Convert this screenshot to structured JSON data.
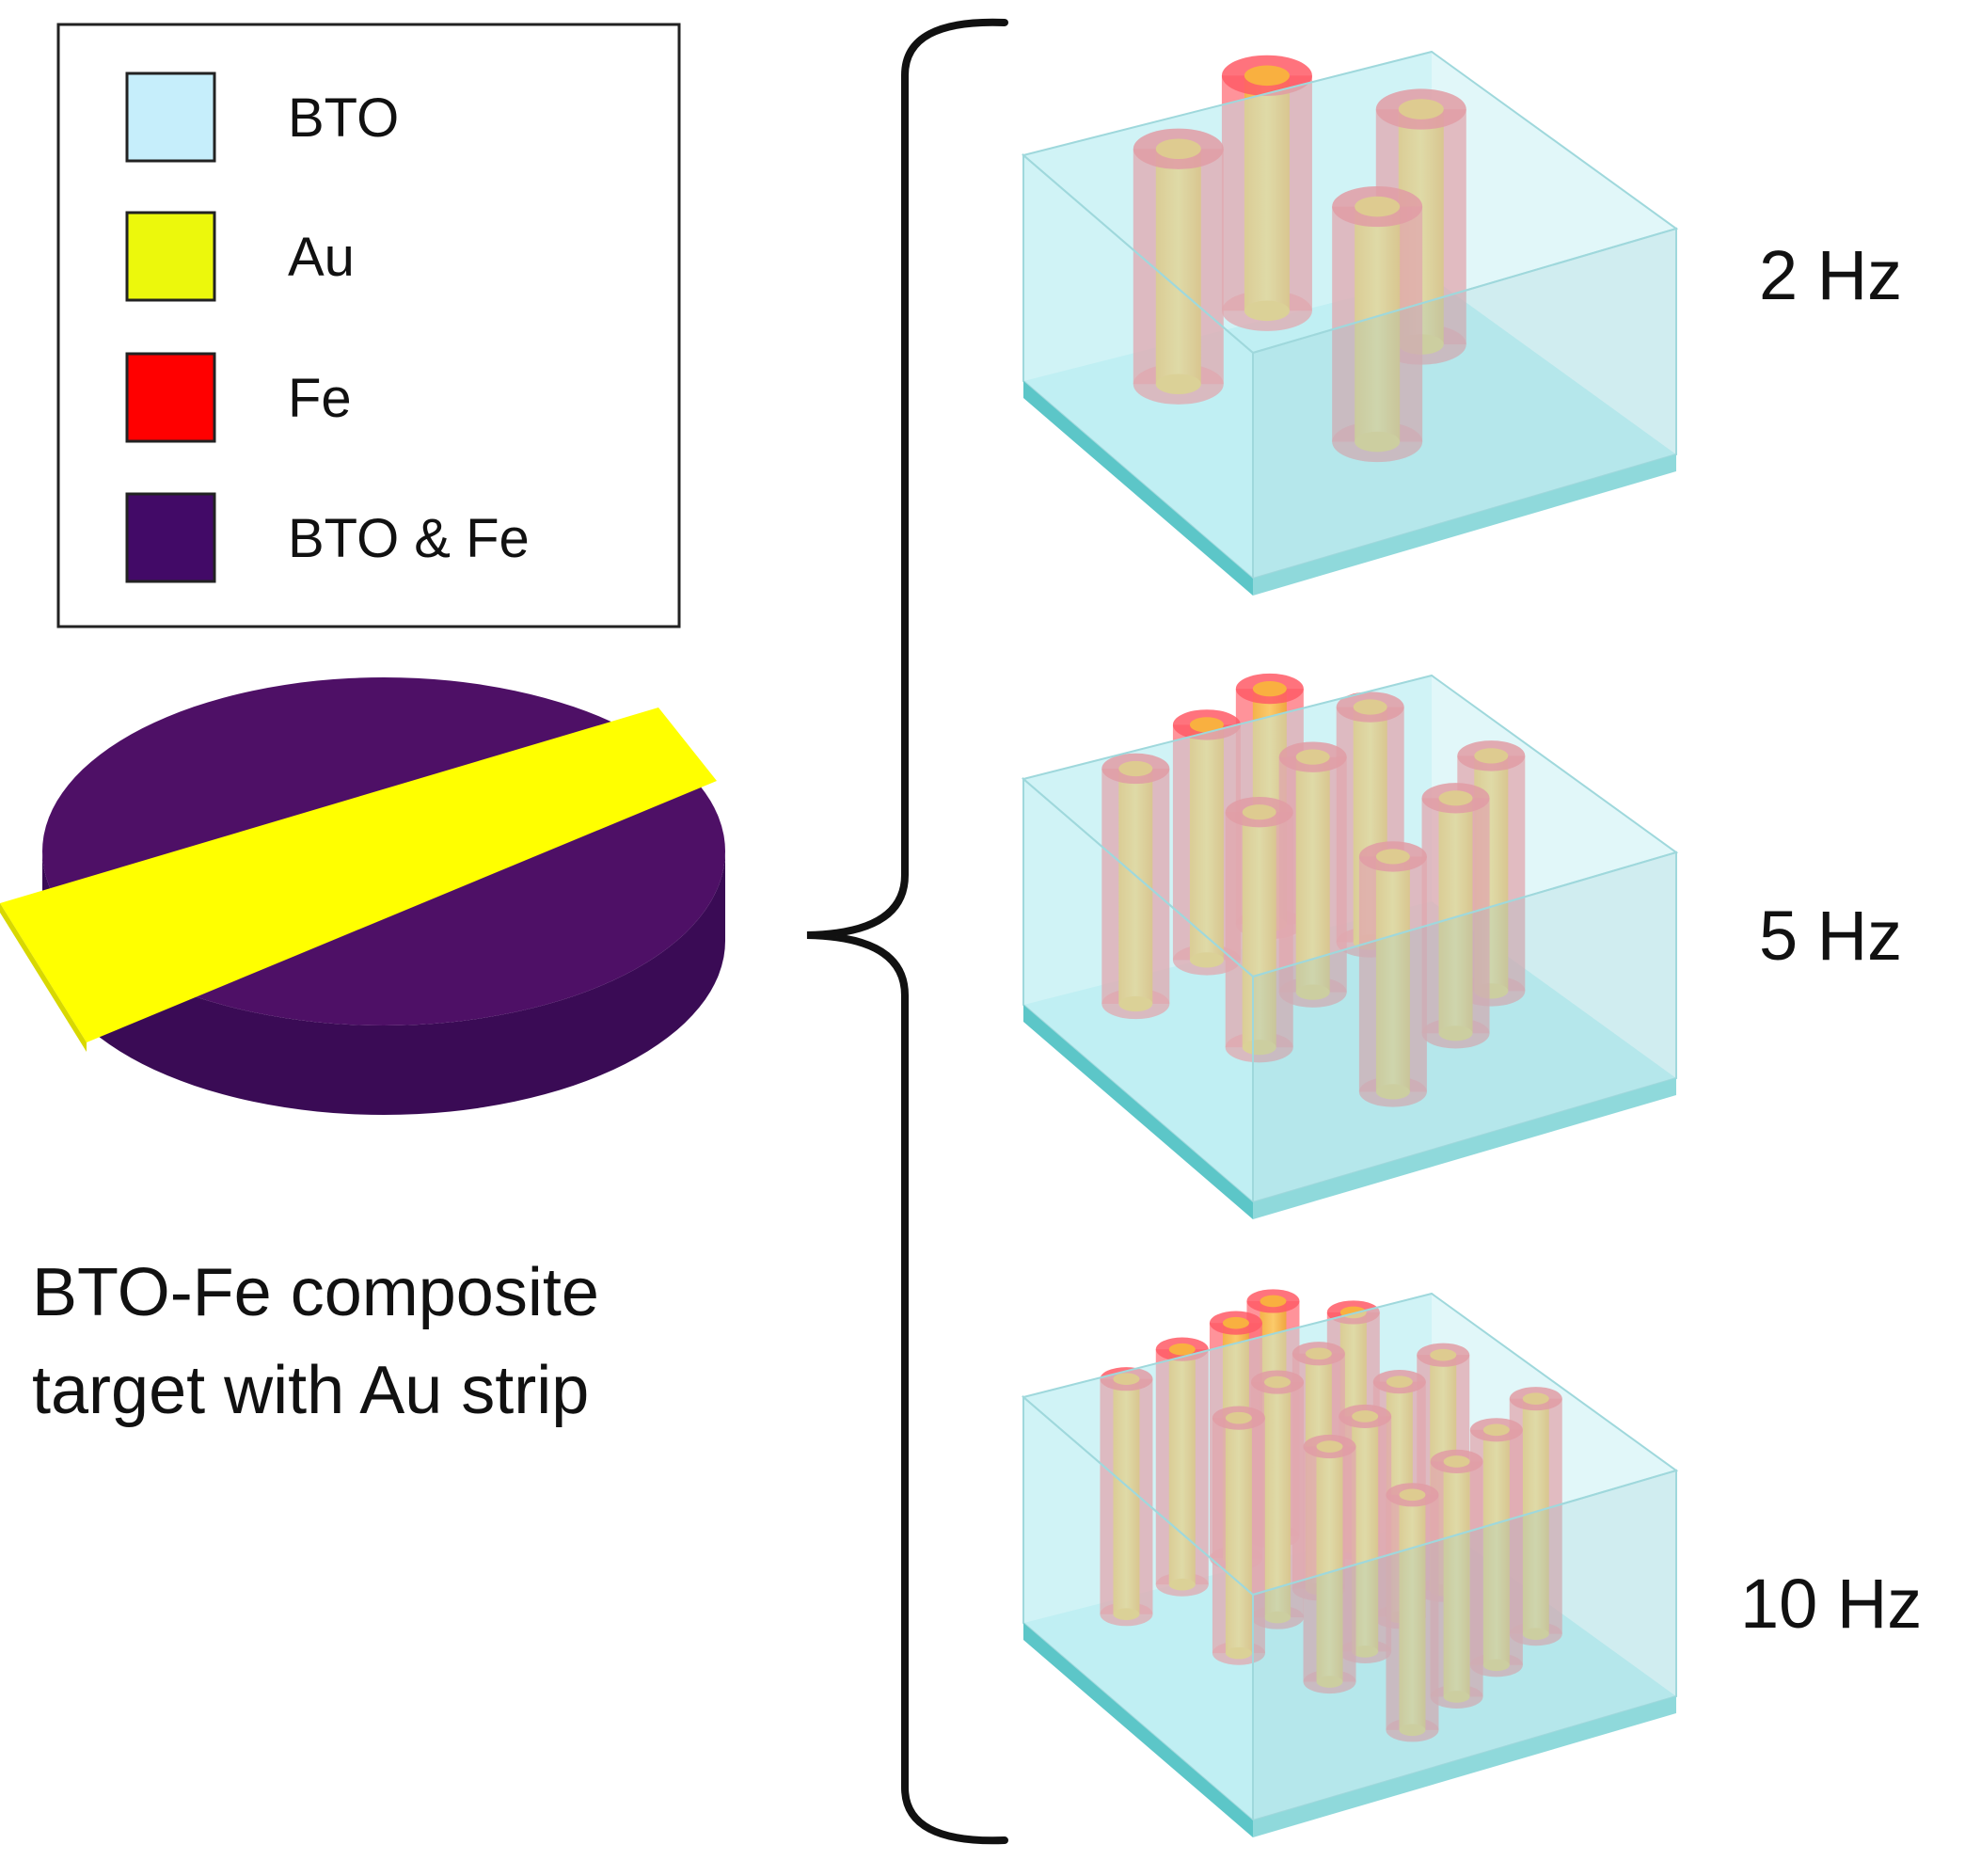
{
  "legend": {
    "items": [
      {
        "label": "BTO",
        "color": "#c6eefb"
      },
      {
        "label": "Au",
        "color": "#ecf80c"
      },
      {
        "label": "Fe",
        "color": "#ff0000"
      },
      {
        "label": "BTO & Fe",
        "color": "#420a67"
      }
    ]
  },
  "target": {
    "caption_line1": "BTO-Fe composite",
    "caption_line2": "target with Au strip",
    "disk_color": "#4e1066",
    "strip_color": "#ffff00"
  },
  "films": [
    {
      "frequency": "2 Hz",
      "pillar_count": 4
    },
    {
      "frequency": "5 Hz",
      "pillar_count": 9
    },
    {
      "frequency": "10 Hz",
      "pillar_count": 16
    }
  ],
  "colors": {
    "matrix": "#bdeef2",
    "pillar_shell": "#ff6f78",
    "pillar_core": "#f5ba4e",
    "substrate": "#5cc6c8"
  }
}
